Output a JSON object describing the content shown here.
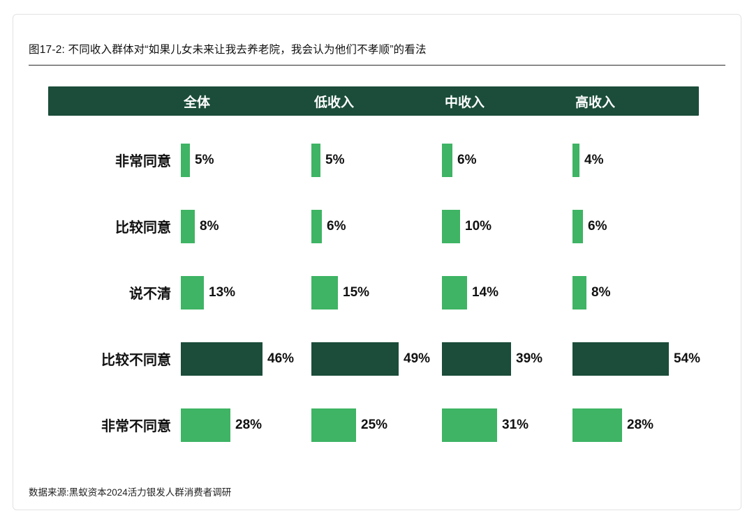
{
  "title": "图17-2: 不同收入群体对“如果儿女未来让我去养老院，我会认为他们不孝顺”的看法",
  "source": "数据来源:黑蚁资本2024活力银发人群消费者调研",
  "chart_data": {
    "type": "bar",
    "orientation": "horizontal",
    "title": "不同收入群体对“如果儿女未来让我去养老院，我会认为他们不孝顺”的看法",
    "columns": [
      "全体",
      "低收入",
      "中收入",
      "高收入"
    ],
    "categories": [
      "非常同意",
      "比较同意",
      "说不清",
      "比较不同意",
      "非常不同意"
    ],
    "series": [
      {
        "name": "全体",
        "values": [
          5,
          8,
          13,
          46,
          28
        ]
      },
      {
        "name": "低收入",
        "values": [
          5,
          6,
          15,
          49,
          25
        ]
      },
      {
        "name": "中收入",
        "values": [
          6,
          10,
          14,
          39,
          31
        ]
      },
      {
        "name": "高收入",
        "values": [
          4,
          6,
          8,
          54,
          28
        ]
      }
    ],
    "value_suffix": "%",
    "emphasis_category": "比较不同意",
    "colors": {
      "bar": "#3eb464",
      "emphasis_bar": "#1b4d3a",
      "header_bg": "#1b4d3a",
      "header_text": "#ffffff"
    },
    "xlim": [
      0,
      60
    ],
    "grid": false,
    "legend": "none"
  }
}
